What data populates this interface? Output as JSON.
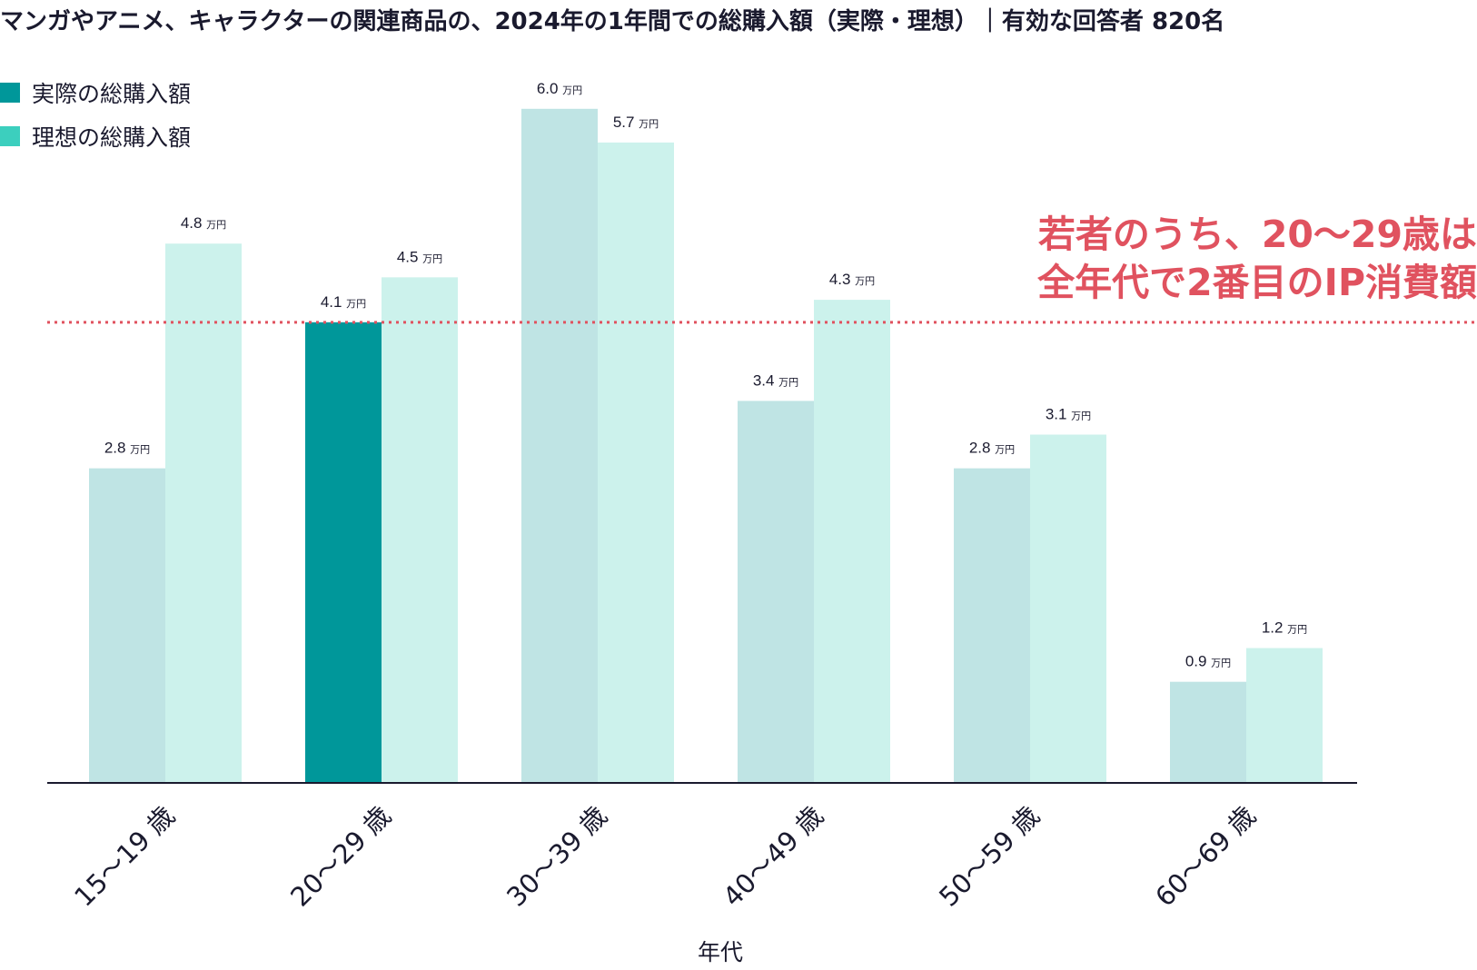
{
  "chart_data": {
    "type": "bar",
    "title": "マンガやアニメ、キャラクターの関連商品の、2024年の1年間での総購入額（実際・理想）｜有効な回答者 820名",
    "xlabel": "年代",
    "ylabel": "",
    "ylim": [
      0,
      6.8
    ],
    "grid": false,
    "legend_position": "top-left",
    "value_unit": "万円",
    "categories": [
      "15〜19 歳",
      "20〜29 歳",
      "30〜39 歳",
      "40〜49 歳",
      "50〜59 歳",
      "60〜69 歳"
    ],
    "series": [
      {
        "name": "実際の総購入額",
        "values": [
          2.8,
          4.1,
          6.0,
          3.4,
          2.8,
          0.9
        ]
      },
      {
        "name": "理想の総購入額",
        "values": [
          4.8,
          4.5,
          5.7,
          4.3,
          3.1,
          1.2
        ]
      }
    ],
    "highlight": {
      "series": 0,
      "category": 1
    },
    "reference_line": {
      "value": 4.1,
      "style": "dotted"
    },
    "annotation": [
      "若者のうち、20〜29歳は",
      "全年代で2番目のIP消費額"
    ]
  },
  "colors": {
    "actual": "#bfe4e4",
    "actual_highlight": "#00979a",
    "ideal": "#ccf2ec",
    "legend_actual": "#00979a",
    "legend_ideal": "#3ccfbe",
    "reference_line": "#e0525f",
    "annotation": "#e0525f",
    "axis": "#1a1a2e",
    "text": "#1a1a2e"
  }
}
